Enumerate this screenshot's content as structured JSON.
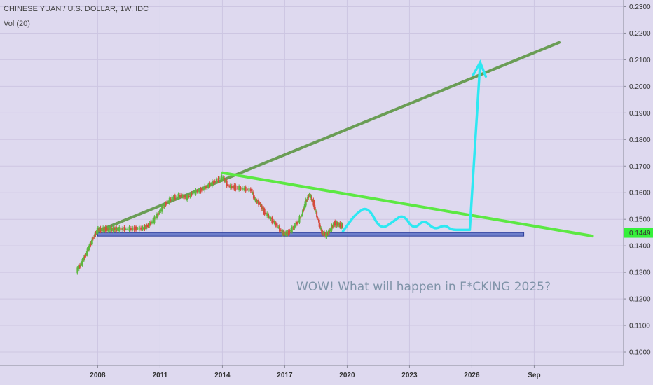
{
  "header": {
    "title": "CHINESE YUAN / U.S. DOLLAR, 1W, IDC",
    "volume": "Vol (20)"
  },
  "chart_data": {
    "type": "line",
    "title": "CHINESE YUAN / U.S. DOLLAR, 1W, IDC",
    "xlabel": "",
    "ylabel": "",
    "x_tick_labels": [
      "2008",
      "2011",
      "2014",
      "2017",
      "2020",
      "2023",
      "2026",
      "Sep"
    ],
    "x_tick_years": [
      2008,
      2011,
      2014,
      2017,
      2020,
      2023,
      2026,
      2029
    ],
    "y_tick_labels": [
      "0.2300",
      "0.2200",
      "0.2100",
      "0.2000",
      "0.1900",
      "0.1800",
      "0.1700",
      "0.1600",
      "0.1500",
      "0.1400",
      "0.1300",
      "0.1200",
      "0.1100",
      "0.1000"
    ],
    "ylim": [
      0.095,
      0.2325
    ],
    "xlim": [
      2003.3,
      2033.3
    ],
    "last_price_label": "0.1449",
    "last_price": 0.1449,
    "grid": true,
    "series": [
      {
        "name": "",
        "style": "candles",
        "x": [
          2007.0,
          2007.2,
          2007.4,
          2007.6,
          2007.8,
          2008.0,
          2008.2,
          2008.4,
          2008.6,
          2008.8,
          2009.0,
          2009.4,
          2009.8,
          2010.2,
          2010.4,
          2010.7,
          2011.0,
          2011.3,
          2011.6,
          2012.0,
          2012.3,
          2012.6,
          2013.0,
          2013.3,
          2013.6,
          2014.0,
          2014.3,
          2014.6,
          2015.0,
          2015.4,
          2015.6,
          2015.8,
          2016.0,
          2016.3,
          2016.6,
          2016.9,
          2017.0,
          2017.2,
          2017.5,
          2017.8,
          2018.0,
          2018.2,
          2018.4,
          2018.6,
          2018.8,
          2019.0,
          2019.2,
          2019.4,
          2019.6,
          2019.8
        ],
        "values": [
          0.1305,
          0.133,
          0.136,
          0.1395,
          0.143,
          0.146,
          0.1462,
          0.1463,
          0.1462,
          0.1463,
          0.1463,
          0.1464,
          0.1465,
          0.1466,
          0.1475,
          0.1495,
          0.153,
          0.156,
          0.158,
          0.159,
          0.158,
          0.16,
          0.161,
          0.1625,
          0.164,
          0.1658,
          0.1625,
          0.162,
          0.1615,
          0.161,
          0.157,
          0.156,
          0.153,
          0.1505,
          0.148,
          0.145,
          0.1445,
          0.145,
          0.1475,
          0.151,
          0.156,
          0.1595,
          0.156,
          0.15,
          0.145,
          0.144,
          0.146,
          0.1485,
          0.148,
          0.1475
        ]
      },
      {
        "name": "",
        "style": "projection-wave",
        "color": "#2ee8f2",
        "x": [
          2019.8,
          2020.4,
          2021.0,
          2021.6,
          2022.2,
          2022.7,
          2023.2,
          2023.7,
          2024.2,
          2024.7,
          2025.0,
          2025.5,
          2025.9,
          2026.4
        ],
        "values": [
          0.1455,
          0.152,
          0.155,
          0.146,
          0.149,
          0.152,
          0.146,
          0.15,
          0.146,
          0.148,
          0.146,
          0.146,
          0.146,
          0.209
        ]
      }
    ],
    "lines": [
      {
        "name": "",
        "color": "#6a9d55",
        "points": [
          [
            2008.0,
            0.1455
          ],
          [
            2030.2,
            0.2165
          ]
        ]
      },
      {
        "name": "",
        "color": "#5ce843",
        "points": [
          [
            2014.0,
            0.1675
          ],
          [
            2031.8,
            0.1437
          ]
        ]
      }
    ],
    "support_band": {
      "x_start": 2008.0,
      "x_end": 2028.5,
      "low": 0.1442,
      "high": 0.145,
      "color": "#5a6fc4"
    },
    "annotation": "WOW! What will happen in F*CKING 2025?",
    "colors": {
      "background": "#ded9ef",
      "grid": "#cdc6e2",
      "candle_up": "#5cb83f",
      "candle_down": "#d54b3d",
      "price_label_bg": "#35f03a"
    }
  }
}
